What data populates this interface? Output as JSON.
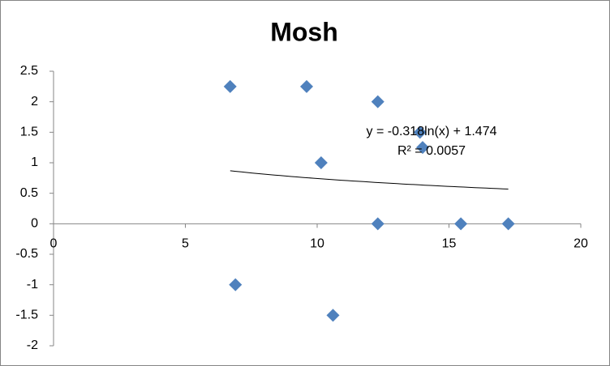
{
  "chart_data": {
    "type": "scatter",
    "title": "Mosh",
    "series": [
      {
        "name": "Mosh",
        "color": "#4f81bd",
        "x": [
          6.7,
          9.6,
          12.3,
          13.9,
          14.0,
          10.15,
          12.3,
          15.45,
          17.25,
          6.9,
          10.6
        ],
        "values": [
          2.25,
          2.25,
          2,
          1.5,
          1.25,
          1,
          0,
          0,
          0,
          -1,
          -1.5
        ]
      }
    ],
    "xlim": [
      0,
      20
    ],
    "xticks": [
      0,
      5,
      10,
      15,
      20
    ],
    "ylim": [
      -2,
      2.5
    ],
    "yticks": [
      -2,
      -1.5,
      -1,
      -0.5,
      0,
      0.5,
      1,
      1.5,
      2,
      2.5
    ],
    "trendline": {
      "type": "log",
      "a": -0.318,
      "b": 1.474,
      "label": "y = -0.318ln(x) + 1.474",
      "r2": 0.0057,
      "r2_label": "R² = 0.0057"
    }
  }
}
